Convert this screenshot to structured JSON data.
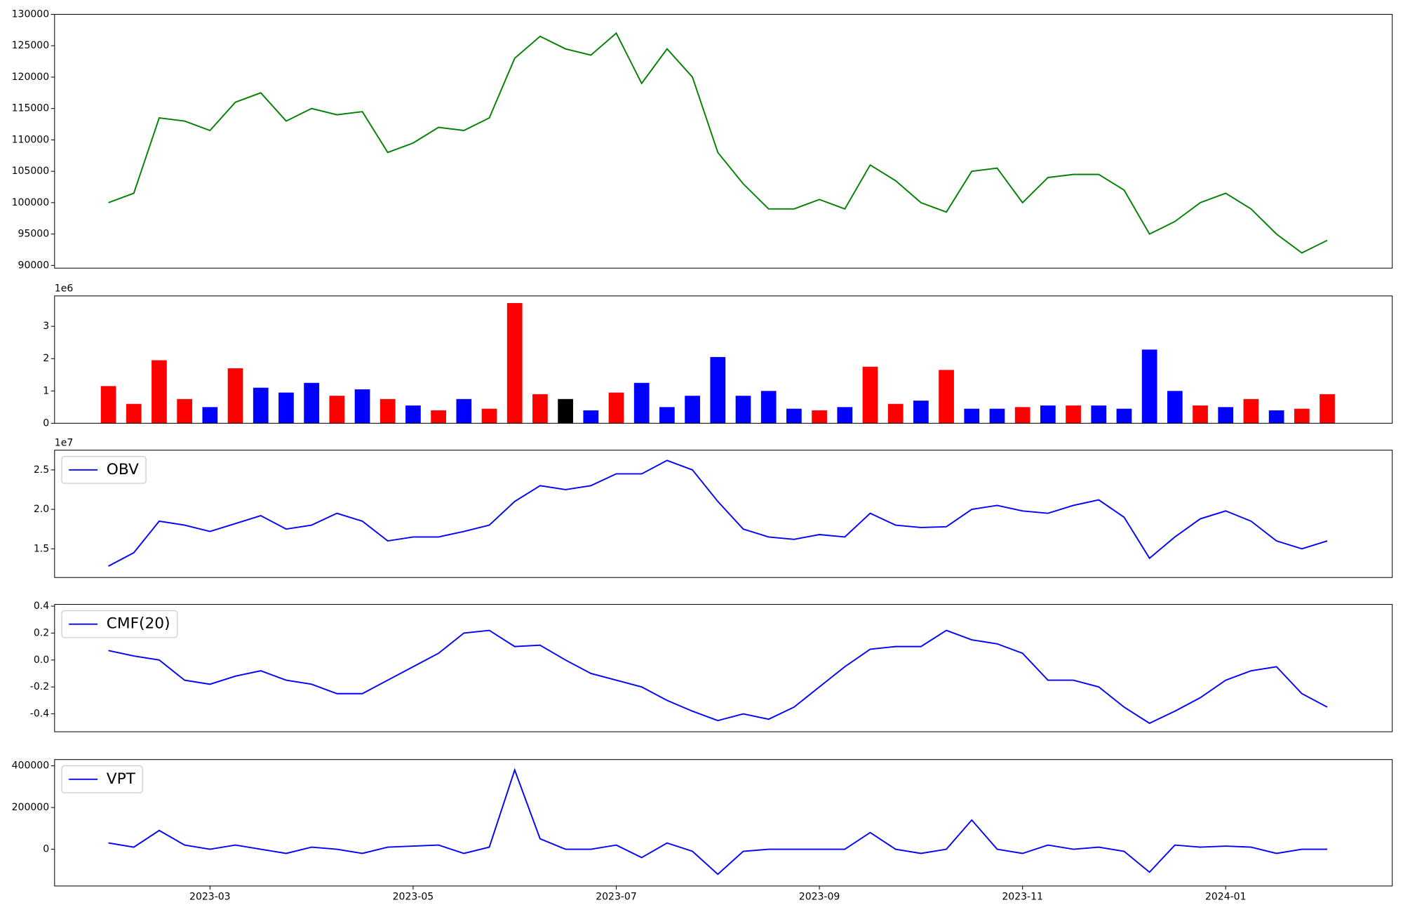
{
  "chart_data": [
    {
      "type": "line",
      "color": "green",
      "x": [
        2,
        2.25,
        2.5,
        2.75,
        3,
        3.25,
        3.5,
        3.75,
        4,
        4.25,
        4.5,
        4.75,
        5,
        5.25,
        5.5,
        5.75,
        6,
        6.25,
        6.5,
        6.75,
        7,
        7.25,
        7.5,
        7.75,
        8,
        8.25,
        8.5,
        8.75,
        9,
        9.25,
        9.5,
        9.75,
        10,
        10.25,
        10.5,
        10.75,
        11,
        11.25,
        11.5,
        11.75,
        12,
        12.25,
        12.5,
        12.75,
        13,
        13.25,
        13.5,
        13.75,
        14
      ],
      "values": [
        100000,
        101500,
        113500,
        113000,
        111500,
        116000,
        117500,
        113000,
        115000,
        114000,
        114500,
        108000,
        109500,
        112000,
        111500,
        113500,
        123000,
        126500,
        124500,
        123500,
        127000,
        119000,
        124500,
        120000,
        108000,
        103000,
        99000,
        99000,
        100500,
        99000,
        106000,
        103500,
        100000,
        98500,
        105000,
        105500,
        100000,
        104000,
        104500,
        104500,
        102000,
        95000,
        97000,
        100000,
        101500,
        99000,
        95000,
        92000,
        94000
      ],
      "xlim": [
        1.47,
        14.64
      ],
      "ylim": [
        89570,
        130000
      ],
      "yticks": [
        90000,
        95000,
        100000,
        105000,
        110000,
        115000,
        120000,
        125000,
        130000
      ]
    },
    {
      "type": "bar",
      "offset_label": "1e6",
      "x": [
        2,
        2.25,
        2.5,
        2.75,
        3,
        3.25,
        3.5,
        3.75,
        4,
        4.25,
        4.5,
        4.75,
        5,
        5.25,
        5.5,
        5.75,
        6,
        6.25,
        6.5,
        6.75,
        7,
        7.25,
        7.5,
        7.75,
        8,
        8.25,
        8.5,
        8.75,
        9,
        9.25,
        9.5,
        9.75,
        10,
        10.25,
        10.5,
        10.75,
        11,
        11.25,
        11.5,
        11.75,
        12,
        12.25,
        12.5,
        12.75,
        13,
        13.25,
        13.5,
        13.75,
        14
      ],
      "values": [
        1.15,
        0.6,
        1.95,
        0.75,
        0.5,
        1.7,
        1.1,
        0.95,
        1.25,
        0.85,
        1.05,
        0.75,
        0.55,
        0.4,
        0.75,
        0.45,
        3.72,
        0.9,
        0.75,
        0.4,
        0.95,
        1.25,
        0.5,
        0.85,
        2.05,
        0.85,
        1.0,
        0.45,
        0.4,
        0.5,
        1.75,
        0.6,
        0.7,
        1.65,
        0.45,
        0.45,
        0.5,
        0.55,
        0.55,
        0.55,
        0.45,
        2.28,
        1.0,
        0.55,
        0.5,
        0.75,
        0.4,
        0.45,
        0.9
      ],
      "colors": [
        "red",
        "red",
        "red",
        "red",
        "blue",
        "red",
        "blue",
        "blue",
        "blue",
        "red",
        "blue",
        "red",
        "blue",
        "red",
        "blue",
        "red",
        "red",
        "red",
        "black",
        "blue",
        "red",
        "blue",
        "blue",
        "blue",
        "blue",
        "blue",
        "blue",
        "blue",
        "red",
        "blue",
        "red",
        "red",
        "blue",
        "red",
        "blue",
        "blue",
        "red",
        "blue",
        "red",
        "blue",
        "blue",
        "blue",
        "blue",
        "red",
        "blue",
        "red",
        "blue",
        "red",
        "red"
      ],
      "xlim": [
        1.47,
        14.64
      ],
      "ylim": [
        0,
        3.94
      ],
      "yticks": [
        0,
        1,
        2,
        3
      ]
    },
    {
      "type": "line",
      "offset_label": "1e7",
      "legend": "upper left",
      "x": [
        2,
        2.25,
        2.5,
        2.75,
        3,
        3.25,
        3.5,
        3.75,
        4,
        4.25,
        4.5,
        4.75,
        5,
        5.25,
        5.5,
        5.75,
        6,
        6.25,
        6.5,
        6.75,
        7,
        7.25,
        7.5,
        7.75,
        8,
        8.25,
        8.5,
        8.75,
        9,
        9.25,
        9.5,
        9.75,
        10,
        10.25,
        10.5,
        10.75,
        11,
        11.25,
        11.5,
        11.75,
        12,
        12.25,
        12.5,
        12.75,
        13,
        13.25,
        13.5,
        13.75,
        14
      ],
      "series": [
        {
          "name": "OBV",
          "color": "blue",
          "values": [
            1.28,
            1.45,
            1.85,
            1.8,
            1.72,
            1.82,
            1.92,
            1.75,
            1.8,
            1.95,
            1.85,
            1.6,
            1.65,
            1.65,
            1.72,
            1.8,
            2.1,
            2.3,
            2.25,
            2.3,
            2.45,
            2.45,
            2.62,
            2.5,
            2.1,
            1.75,
            1.65,
            1.62,
            1.68,
            1.65,
            1.95,
            1.8,
            1.77,
            1.78,
            2.0,
            2.05,
            1.98,
            1.95,
            2.05,
            2.12,
            1.9,
            1.38,
            1.65,
            1.88,
            1.98,
            1.85,
            1.6,
            1.5,
            1.6
          ]
        }
      ],
      "xlim": [
        1.47,
        14.64
      ],
      "ylim": [
        1.136,
        2.75
      ],
      "yticks": [
        1.5,
        {
          "value": 2,
          "label": "2.0"
        },
        2.5
      ]
    },
    {
      "type": "line",
      "legend": "upper left",
      "x": [
        2,
        2.25,
        2.5,
        2.75,
        3,
        3.25,
        3.5,
        3.75,
        4,
        4.25,
        4.5,
        4.75,
        5,
        5.25,
        5.5,
        5.75,
        6,
        6.25,
        6.5,
        6.75,
        7,
        7.25,
        7.5,
        7.75,
        8,
        8.25,
        8.5,
        8.75,
        9,
        9.25,
        9.5,
        9.75,
        10,
        10.25,
        10.5,
        10.75,
        11,
        11.25,
        11.5,
        11.75,
        12,
        12.25,
        12.5,
        12.75,
        13,
        13.25,
        13.5,
        13.75,
        14
      ],
      "series": [
        {
          "name": "CMF(20)",
          "color": "blue",
          "values": [
            0.07,
            0.03,
            0.0,
            -0.15,
            -0.18,
            -0.12,
            -0.08,
            -0.15,
            -0.18,
            -0.25,
            -0.25,
            -0.15,
            -0.05,
            0.05,
            0.2,
            0.22,
            0.1,
            0.11,
            0.0,
            -0.1,
            -0.15,
            -0.2,
            -0.3,
            -0.38,
            -0.45,
            -0.4,
            -0.44,
            -0.35,
            -0.2,
            -0.05,
            0.08,
            0.1,
            0.1,
            0.22,
            0.15,
            0.12,
            0.05,
            -0.15,
            -0.15,
            -0.2,
            -0.35,
            -0.47,
            -0.38,
            -0.28,
            -0.15,
            -0.08,
            -0.05,
            -0.25,
            -0.35
          ]
        }
      ],
      "xlim": [
        1.47,
        14.64
      ],
      "ylim": [
        -0.533,
        0.413
      ],
      "yticks": [
        -0.4,
        -0.2,
        {
          "value": 0,
          "label": "0.0"
        },
        0.2,
        0.4
      ]
    },
    {
      "type": "line",
      "legend": "upper left",
      "x": [
        2,
        2.25,
        2.5,
        2.75,
        3,
        3.25,
        3.5,
        3.75,
        4,
        4.25,
        4.5,
        4.75,
        5,
        5.25,
        5.5,
        5.75,
        6,
        6.25,
        6.5,
        6.75,
        7,
        7.25,
        7.5,
        7.75,
        8,
        8.25,
        8.5,
        8.75,
        9,
        9.25,
        9.5,
        9.75,
        10,
        10.25,
        10.5,
        10.75,
        11,
        11.25,
        11.5,
        11.75,
        12,
        12.25,
        12.5,
        12.75,
        13,
        13.25,
        13.5,
        13.75,
        14
      ],
      "series": [
        {
          "name": "VPT",
          "color": "blue",
          "values": [
            30000,
            10000,
            90000,
            20000,
            0,
            20000,
            0,
            -20000,
            10000,
            0,
            -20000,
            10000,
            15000,
            20000,
            -20000,
            10000,
            380000,
            50000,
            0,
            0,
            20000,
            -40000,
            30000,
            -10000,
            -120000,
            -10000,
            0,
            0,
            0,
            0,
            80000,
            0,
            -20000,
            0,
            140000,
            0,
            -20000,
            20000,
            0,
            10000,
            -10000,
            -110000,
            20000,
            10000,
            15000,
            10000,
            -20000,
            0,
            0
          ]
        }
      ],
      "xlim": [
        1.47,
        14.64
      ],
      "ylim": [
        -176300,
        430100
      ],
      "yticks": [
        0,
        200000,
        400000
      ],
      "xticks": [
        {
          "value": 3,
          "label": "2023-03"
        },
        {
          "value": 5,
          "label": "2023-05"
        },
        {
          "value": 7,
          "label": "2023-07"
        },
        {
          "value": 9,
          "label": "2023-09"
        },
        {
          "value": 11,
          "label": "2023-11"
        },
        {
          "value": 13,
          "label": "2024-01"
        }
      ]
    }
  ]
}
